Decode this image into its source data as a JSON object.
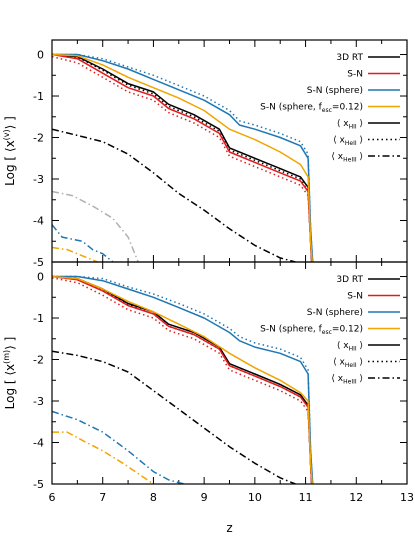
{
  "chart_data": [
    {
      "type": "line",
      "id": "volume",
      "ylabel": "Log [ ⟨x^(v)⟩ ]",
      "xlabel": "",
      "xlim": [
        6,
        13
      ],
      "ylim": [
        -5,
        0.35
      ],
      "yticks": [
        0,
        -1,
        -2,
        -3,
        -4,
        -5
      ],
      "ytick_labels": [
        "0",
        "-1",
        "-2",
        "-3",
        "-4",
        "-5"
      ],
      "legend_position": "top-right",
      "legend_lines": [
        {
          "text": "3D RT",
          "color": "#000000",
          "dash": "solid"
        },
        {
          "text": "S-N",
          "color": "#e41a1c",
          "dash": "solid"
        },
        {
          "text": "S-N (sphere)",
          "color": "#1f77b4",
          "dash": "solid"
        },
        {
          "text": "S-N (sphere, f",
          "sub": "esc",
          "tail": "=0.12)",
          "color": "#f0a500",
          "dash": "solid"
        },
        {
          "text": "⟨ x",
          "sub": "HII",
          "tail": " ⟩",
          "color": "#000000",
          "dash": "solid"
        },
        {
          "text": "⟨ x",
          "sub": "HeII",
          "tail": " ⟩",
          "color": "#000000",
          "dash": "dotted"
        },
        {
          "text": "⟨ x",
          "sub": "HeIII",
          "tail": " ⟩",
          "color": "#000000",
          "dash": "dashdot"
        }
      ],
      "series": [
        {
          "model": "3D RT",
          "species": "HII",
          "color": "#000000",
          "dash": "solid",
          "x": [
            6.0,
            6.5,
            7.0,
            7.5,
            8.0,
            8.3,
            8.8,
            9.3,
            9.5,
            10.0,
            10.5,
            10.9,
            11.05,
            11.1,
            11.12
          ],
          "y": [
            0.0,
            -0.05,
            -0.35,
            -0.7,
            -0.9,
            -1.2,
            -1.45,
            -1.8,
            -2.25,
            -2.5,
            -2.75,
            -2.95,
            -3.2,
            -4.5,
            -5.0
          ]
        },
        {
          "model": "3D RT",
          "species": "HeII",
          "color": "#000000",
          "dash": "dotted",
          "x": [
            6.0,
            6.5,
            7.0,
            7.5,
            8.0,
            8.3,
            8.8,
            9.3,
            9.5,
            10.0,
            10.5,
            10.9,
            11.05,
            11.1,
            11.12
          ],
          "y": [
            0.0,
            -0.06,
            -0.38,
            -0.74,
            -0.95,
            -1.25,
            -1.5,
            -1.85,
            -2.3,
            -2.55,
            -2.8,
            -3.0,
            -3.3,
            -4.5,
            -5.0
          ]
        },
        {
          "model": "3D RT",
          "species": "HeIII",
          "color": "#000000",
          "dash": "dashdot",
          "x": [
            6.0,
            6.5,
            7.0,
            7.5,
            8.0,
            8.5,
            9.0,
            9.5,
            10.0,
            10.5,
            10.8
          ],
          "y": [
            -1.8,
            -1.95,
            -2.1,
            -2.4,
            -2.85,
            -3.35,
            -3.75,
            -4.2,
            -4.6,
            -4.9,
            -5.0
          ]
        },
        {
          "model": "S-N",
          "species": "HII",
          "color": "#e41a1c",
          "dash": "solid",
          "x": [
            6.0,
            6.5,
            7.0,
            7.5,
            8.0,
            8.3,
            8.8,
            9.3,
            9.5,
            10.0,
            10.5,
            10.9,
            11.05,
            11.1,
            11.12
          ],
          "y": [
            0.0,
            -0.1,
            -0.45,
            -0.8,
            -1.0,
            -1.3,
            -1.55,
            -1.9,
            -2.35,
            -2.6,
            -2.85,
            -3.05,
            -3.3,
            -4.5,
            -5.0
          ]
        },
        {
          "model": "S-N",
          "species": "HeII",
          "color": "#e41a1c",
          "dash": "dotted",
          "x": [
            6.0,
            6.5,
            7.0,
            7.5,
            8.0,
            8.3,
            8.8,
            9.3,
            9.5,
            10.0,
            10.5,
            10.9,
            11.05,
            11.1,
            11.12
          ],
          "y": [
            -0.05,
            -0.2,
            -0.55,
            -0.9,
            -1.1,
            -1.4,
            -1.65,
            -2.0,
            -2.45,
            -2.7,
            -2.95,
            -3.15,
            -3.4,
            -4.5,
            -5.0
          ]
        },
        {
          "model": "S-N (sphere)",
          "species": "HII",
          "color": "#1f77b4",
          "dash": "solid",
          "x": [
            6.0,
            6.5,
            7.0,
            7.5,
            8.0,
            8.5,
            9.0,
            9.5,
            9.7,
            10.0,
            10.5,
            10.9,
            11.05,
            11.1,
            11.14
          ],
          "y": [
            0.0,
            0.0,
            -0.15,
            -0.35,
            -0.6,
            -0.85,
            -1.1,
            -1.45,
            -1.7,
            -1.8,
            -2.0,
            -2.2,
            -2.5,
            -4.2,
            -5.0
          ]
        },
        {
          "model": "S-N (sphere)",
          "species": "HeII",
          "color": "#1f77b4",
          "dash": "dotted",
          "x": [
            6.0,
            6.5,
            7.0,
            7.5,
            8.0,
            8.5,
            9.0,
            9.5,
            9.7,
            10.0,
            10.5,
            10.9,
            11.05,
            11.1,
            11.14
          ],
          "y": [
            0.0,
            0.0,
            -0.1,
            -0.3,
            -0.5,
            -0.75,
            -1.0,
            -1.35,
            -1.6,
            -1.7,
            -1.9,
            -2.1,
            -2.4,
            -4.2,
            -5.0
          ]
        },
        {
          "model": "S-N (sphere)",
          "species": "HeIII",
          "color": "#1f77b4",
          "dash": "dashdot",
          "x": [
            6.0,
            6.2,
            6.4,
            6.6,
            6.8,
            7.0,
            7.2
          ],
          "y": [
            -4.1,
            -4.4,
            -4.45,
            -4.5,
            -4.7,
            -4.8,
            -5.0
          ]
        },
        {
          "model": "S-N (sphere, fesc=0.12)",
          "species": "HII",
          "color": "#f0a500",
          "dash": "solid",
          "x": [
            6.0,
            6.5,
            7.0,
            7.5,
            8.0,
            8.5,
            9.0,
            9.5,
            10.0,
            10.5,
            10.9,
            11.05,
            11.1,
            11.13
          ],
          "y": [
            0.0,
            -0.03,
            -0.25,
            -0.55,
            -0.8,
            -1.05,
            -1.35,
            -1.8,
            -2.05,
            -2.35,
            -2.65,
            -2.95,
            -4.5,
            -5.0
          ]
        },
        {
          "model": "S-N (sphere, fesc=0.12)",
          "species": "HeIII",
          "color": "#f0a500",
          "dash": "dashdot",
          "x": [
            6.0,
            6.3,
            6.6,
            6.9
          ],
          "y": [
            -4.65,
            -4.7,
            -4.85,
            -5.0
          ]
        },
        {
          "model": "S-N",
          "species": "HeIII",
          "color": "#b0b0b0",
          "dash": "dashdot",
          "x": [
            6.0,
            6.4,
            6.8,
            7.2,
            7.5,
            7.7
          ],
          "y": [
            -3.3,
            -3.4,
            -3.65,
            -3.95,
            -4.4,
            -5.0
          ]
        }
      ]
    },
    {
      "type": "line",
      "id": "mass",
      "ylabel": "Log [ ⟨x^(m)⟩ ]",
      "xlabel": "z",
      "xlim": [
        6,
        13
      ],
      "ylim": [
        -5,
        0.35
      ],
      "xticks": [
        6,
        7,
        8,
        9,
        10,
        11,
        12,
        13
      ],
      "xtick_labels": [
        "6",
        "7",
        "8",
        "9",
        "10",
        "11",
        "12",
        "13"
      ],
      "yticks": [
        0,
        -1,
        -2,
        -3,
        -4,
        -5
      ],
      "ytick_labels": [
        "0",
        "-1",
        "-2",
        "-3",
        "-4",
        "-5"
      ],
      "legend_position": "top-right",
      "legend_lines": [
        {
          "text": "3D RT",
          "color": "#000000",
          "dash": "solid"
        },
        {
          "text": "S-N",
          "color": "#e41a1c",
          "dash": "solid"
        },
        {
          "text": "S-N (sphere)",
          "color": "#1f77b4",
          "dash": "solid"
        },
        {
          "text": "S-N (sphere, f",
          "sub": "esc",
          "tail": "=0.12)",
          "color": "#f0a500",
          "dash": "solid"
        },
        {
          "text": "⟨ x",
          "sub": "HII",
          "tail": " ⟩",
          "color": "#000000",
          "dash": "solid"
        },
        {
          "text": "⟨ x",
          "sub": "HeII",
          "tail": " ⟩",
          "color": "#000000",
          "dash": "dotted"
        },
        {
          "text": "⟨ x",
          "sub": "HeIII",
          "tail": " ⟩",
          "color": "#000000",
          "dash": "dashdot"
        }
      ],
      "series": [
        {
          "model": "3D RT",
          "species": "HII",
          "color": "#000000",
          "dash": "solid",
          "x": [
            6.0,
            6.5,
            7.0,
            7.5,
            8.0,
            8.3,
            8.8,
            9.3,
            9.5,
            10.0,
            10.5,
            10.9,
            11.05,
            11.1,
            11.12
          ],
          "y": [
            0.0,
            -0.05,
            -0.3,
            -0.65,
            -0.85,
            -1.15,
            -1.35,
            -1.7,
            -2.1,
            -2.35,
            -2.6,
            -2.85,
            -3.1,
            -4.5,
            -5.0
          ]
        },
        {
          "model": "3D RT",
          "species": "HeII",
          "color": "#000000",
          "dash": "dotted",
          "x": [
            6.0,
            6.5,
            7.0,
            7.5,
            8.0,
            8.3,
            8.8,
            9.3,
            9.5,
            10.0,
            10.5,
            10.9,
            11.05,
            11.1,
            11.12
          ],
          "y": [
            0.0,
            -0.06,
            -0.33,
            -0.68,
            -0.9,
            -1.2,
            -1.4,
            -1.75,
            -2.15,
            -2.4,
            -2.65,
            -2.9,
            -3.15,
            -4.5,
            -5.0
          ]
        },
        {
          "model": "3D RT",
          "species": "HeIII",
          "color": "#000000",
          "dash": "dashdot",
          "x": [
            6.0,
            6.5,
            7.0,
            7.5,
            8.0,
            8.5,
            9.0,
            9.5,
            10.0,
            10.5,
            10.8
          ],
          "y": [
            -1.8,
            -1.9,
            -2.05,
            -2.3,
            -2.75,
            -3.2,
            -3.65,
            -4.1,
            -4.5,
            -4.85,
            -5.0
          ]
        },
        {
          "model": "S-N",
          "species": "HII",
          "color": "#e41a1c",
          "dash": "solid",
          "x": [
            6.0,
            6.5,
            7.0,
            7.5,
            8.0,
            8.3,
            8.8,
            9.3,
            9.5,
            10.0,
            10.5,
            10.9,
            11.05,
            11.1,
            11.12
          ],
          "y": [
            0.0,
            -0.08,
            -0.35,
            -0.7,
            -0.9,
            -1.2,
            -1.4,
            -1.75,
            -2.15,
            -2.4,
            -2.65,
            -2.9,
            -3.15,
            -4.5,
            -5.0
          ]
        },
        {
          "model": "S-N",
          "species": "HeII",
          "color": "#e41a1c",
          "dash": "dotted",
          "x": [
            6.0,
            6.5,
            7.0,
            7.5,
            8.0,
            8.3,
            8.8,
            9.3,
            9.5,
            10.0,
            10.5,
            10.9,
            11.05,
            11.1,
            11.12
          ],
          "y": [
            -0.03,
            -0.15,
            -0.45,
            -0.8,
            -1.0,
            -1.3,
            -1.5,
            -1.85,
            -2.25,
            -2.5,
            -2.75,
            -3.0,
            -3.25,
            -4.5,
            -5.0
          ]
        },
        {
          "model": "S-N (sphere)",
          "species": "HII",
          "color": "#1f77b4",
          "dash": "solid",
          "x": [
            6.0,
            6.5,
            7.0,
            7.5,
            8.0,
            8.5,
            9.0,
            9.5,
            9.7,
            10.0,
            10.5,
            10.9,
            11.05,
            11.1,
            11.14
          ],
          "y": [
            0.0,
            0.0,
            -0.1,
            -0.3,
            -0.5,
            -0.75,
            -1.0,
            -1.35,
            -1.55,
            -1.7,
            -1.85,
            -2.05,
            -2.35,
            -4.2,
            -5.0
          ]
        },
        {
          "model": "S-N (sphere)",
          "species": "HeII",
          "color": "#1f77b4",
          "dash": "dotted",
          "x": [
            6.0,
            6.5,
            7.0,
            7.5,
            8.0,
            8.5,
            9.0,
            9.5,
            9.7,
            10.0,
            10.5,
            10.9,
            11.05,
            11.1,
            11.14
          ],
          "y": [
            0.0,
            0.0,
            -0.05,
            -0.25,
            -0.42,
            -0.65,
            -0.9,
            -1.25,
            -1.45,
            -1.6,
            -1.75,
            -1.95,
            -2.25,
            -4.2,
            -5.0
          ]
        },
        {
          "model": "S-N (sphere)",
          "species": "HeIII",
          "color": "#1f77b4",
          "dash": "dashdot",
          "x": [
            6.0,
            6.5,
            7.0,
            7.5,
            7.8,
            8.0,
            8.3,
            8.6
          ],
          "y": [
            -3.25,
            -3.45,
            -3.75,
            -4.2,
            -4.5,
            -4.7,
            -4.9,
            -5.0
          ]
        },
        {
          "model": "S-N (sphere, fesc=0.12)",
          "species": "HII",
          "color": "#f0a500",
          "dash": "solid",
          "x": [
            6.0,
            6.5,
            7.0,
            7.5,
            8.0,
            8.5,
            9.0,
            9.5,
            10.0,
            10.5,
            10.9,
            11.05,
            11.1,
            11.13
          ],
          "y": [
            0.0,
            -0.05,
            -0.3,
            -0.6,
            -0.85,
            -1.15,
            -1.45,
            -1.85,
            -2.2,
            -2.5,
            -2.8,
            -3.0,
            -4.5,
            -5.0
          ]
        },
        {
          "model": "S-N (sphere, fesc=0.12)",
          "species": "HeIII",
          "color": "#f0a500",
          "dash": "dashdot",
          "x": [
            6.0,
            6.3,
            6.6,
            7.0,
            7.4,
            7.7,
            8.0
          ],
          "y": [
            -3.75,
            -3.75,
            -3.95,
            -4.2,
            -4.5,
            -4.75,
            -5.0
          ]
        }
      ]
    }
  ]
}
